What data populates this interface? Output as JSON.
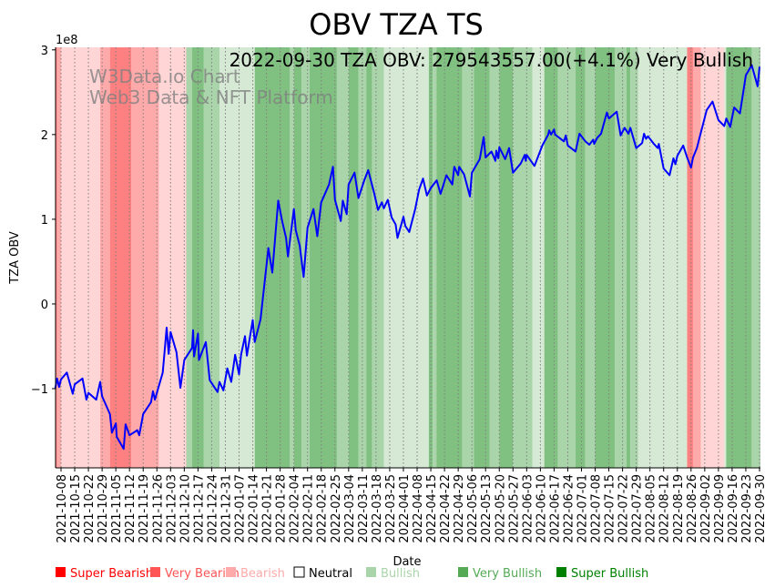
{
  "chart_data": {
    "type": "line",
    "title": "OBV TZA TS",
    "xlabel": "Date",
    "ylabel": "TZA OBV",
    "y_offset_label": "1e8",
    "y_scale": 100000000,
    "ylim": [
      -1.935,
      3.03
    ],
    "x_start_date": "2021-10-08",
    "x_range_days": [
      -3,
      358
    ],
    "grid": "vertical dotted at weekly ticks",
    "annotation": "2022-09-30 TZA OBV: 279543557.00(+4.1%) Very Bullish",
    "watermark": [
      "W3Data.io Chart",
      "Web3 Data & NFT Platform"
    ],
    "y_ticks": [
      {
        "v": -1,
        "label": "−1"
      },
      {
        "v": 0,
        "label": "0"
      },
      {
        "v": 1,
        "label": "1"
      },
      {
        "v": 2,
        "label": "2"
      },
      {
        "v": 3,
        "label": "3"
      }
    ],
    "x_ticks": [
      "2021-10-08",
      "2021-10-15",
      "2021-10-22",
      "2021-10-29",
      "2021-11-05",
      "2021-11-12",
      "2021-11-19",
      "2021-11-26",
      "2021-12-03",
      "2021-12-10",
      "2021-12-17",
      "2021-12-24",
      "2021-12-31",
      "2022-01-07",
      "2022-01-14",
      "2022-01-21",
      "2022-01-28",
      "2022-02-04",
      "2022-02-11",
      "2022-02-18",
      "2022-02-25",
      "2022-03-04",
      "2022-03-11",
      "2022-03-18",
      "2022-03-25",
      "2022-04-01",
      "2022-04-08",
      "2022-04-15",
      "2022-04-22",
      "2022-04-29",
      "2022-05-06",
      "2022-05-13",
      "2022-05-20",
      "2022-05-27",
      "2022-06-03",
      "2022-06-10",
      "2022-06-17",
      "2022-06-24",
      "2022-07-01",
      "2022-07-08",
      "2022-07-15",
      "2022-07-22",
      "2022-07-29",
      "2022-08-05",
      "2022-08-12",
      "2022-08-19",
      "2022-08-26",
      "2022-09-02",
      "2022-09-09",
      "2022-09-16",
      "2022-09-23",
      "2022-09-30"
    ],
    "series": [
      {
        "name": "TZA OBV (1e8)",
        "color": "#0000ff",
        "points": [
          [
            -3,
            -1.0
          ],
          [
            -2,
            -0.88
          ],
          [
            -1,
            -0.98
          ],
          [
            0,
            -0.89
          ],
          [
            3,
            -0.81
          ],
          [
            6,
            -1.06
          ],
          [
            7,
            -0.95
          ],
          [
            11,
            -0.88
          ],
          [
            13,
            -1.13
          ],
          [
            14,
            -1.05
          ],
          [
            18,
            -1.13
          ],
          [
            20,
            -0.92
          ],
          [
            21,
            -1.09
          ],
          [
            25,
            -1.3
          ],
          [
            26,
            -1.52
          ],
          [
            28,
            -1.41
          ],
          [
            28.5,
            -1.57
          ],
          [
            32,
            -1.71
          ],
          [
            33,
            -1.42
          ],
          [
            35,
            -1.55
          ],
          [
            39,
            -1.49
          ],
          [
            40,
            -1.55
          ],
          [
            42,
            -1.3
          ],
          [
            46,
            -1.16
          ],
          [
            47,
            -1.03
          ],
          [
            48,
            -1.13
          ],
          [
            52,
            -0.81
          ],
          [
            54,
            -0.28
          ],
          [
            55,
            -0.59
          ],
          [
            56,
            -0.33
          ],
          [
            59,
            -0.57
          ],
          [
            61,
            -0.99
          ],
          [
            63,
            -0.66
          ],
          [
            67,
            -0.52
          ],
          [
            67.5,
            -0.31
          ],
          [
            68,
            -0.62
          ],
          [
            70,
            -0.35
          ],
          [
            70.5,
            -0.66
          ],
          [
            74,
            -0.45
          ],
          [
            76,
            -0.9
          ],
          [
            80,
            -1.04
          ],
          [
            81,
            -0.92
          ],
          [
            83,
            -1.02
          ],
          [
            85,
            -0.76
          ],
          [
            87,
            -0.92
          ],
          [
            89,
            -0.6
          ],
          [
            91,
            -0.83
          ],
          [
            92,
            -0.6
          ],
          [
            94,
            -0.38
          ],
          [
            95,
            -0.61
          ],
          [
            98,
            -0.19
          ],
          [
            99,
            -0.45
          ],
          [
            102,
            -0.18
          ],
          [
            106,
            0.66
          ],
          [
            108,
            0.37
          ],
          [
            111,
            1.22
          ],
          [
            113,
            0.98
          ],
          [
            115,
            0.78
          ],
          [
            116,
            0.56
          ],
          [
            119,
            1.12
          ],
          [
            120,
            0.87
          ],
          [
            122,
            0.69
          ],
          [
            124,
            0.32
          ],
          [
            126,
            0.9
          ],
          [
            129,
            1.12
          ],
          [
            131,
            0.8
          ],
          [
            133,
            1.2
          ],
          [
            137,
            1.41
          ],
          [
            139,
            1.62
          ],
          [
            140,
            1.23
          ],
          [
            143,
            0.98
          ],
          [
            144,
            1.22
          ],
          [
            146,
            1.06
          ],
          [
            147,
            1.41
          ],
          [
            150,
            1.55
          ],
          [
            152,
            1.25
          ],
          [
            155,
            1.46
          ],
          [
            157,
            1.58
          ],
          [
            160,
            1.31
          ],
          [
            162,
            1.11
          ],
          [
            164,
            1.2
          ],
          [
            165,
            1.13
          ],
          [
            167,
            1.23
          ],
          [
            169,
            1.02
          ],
          [
            171,
            0.94
          ],
          [
            172,
            0.78
          ],
          [
            175,
            1.03
          ],
          [
            176,
            0.92
          ],
          [
            178,
            0.85
          ],
          [
            181,
            1.12
          ],
          [
            183,
            1.35
          ],
          [
            185,
            1.48
          ],
          [
            187,
            1.28
          ],
          [
            189,
            1.37
          ],
          [
            192,
            1.46
          ],
          [
            194,
            1.3
          ],
          [
            197,
            1.52
          ],
          [
            200,
            1.41
          ],
          [
            201,
            1.62
          ],
          [
            203,
            1.52
          ],
          [
            203.5,
            1.62
          ],
          [
            206,
            1.53
          ],
          [
            209,
            1.27
          ],
          [
            210,
            1.55
          ],
          [
            214,
            1.71
          ],
          [
            216,
            1.97
          ],
          [
            217,
            1.73
          ],
          [
            220,
            1.8
          ],
          [
            222,
            1.69
          ],
          [
            222.5,
            1.81
          ],
          [
            223.5,
            1.72
          ],
          [
            224,
            1.85
          ],
          [
            227,
            1.71
          ],
          [
            229,
            1.84
          ],
          [
            231,
            1.55
          ],
          [
            235,
            1.66
          ],
          [
            237,
            1.76
          ],
          [
            237.5,
            1.69
          ],
          [
            238,
            1.76
          ],
          [
            242,
            1.63
          ],
          [
            246,
            1.87
          ],
          [
            249,
            2.0
          ],
          [
            249.5,
            2.05
          ],
          [
            250.5,
            2.0
          ],
          [
            252,
            2.06
          ],
          [
            252.5,
            2.0
          ],
          [
            257,
            1.92
          ],
          [
            258,
            1.99
          ],
          [
            259,
            1.87
          ],
          [
            263,
            1.8
          ],
          [
            265,
            2.01
          ],
          [
            268,
            1.92
          ],
          [
            270,
            1.88
          ],
          [
            272,
            1.94
          ],
          [
            272.5,
            1.89
          ],
          [
            274,
            1.96
          ],
          [
            276,
            2.01
          ],
          [
            279,
            2.26
          ],
          [
            280,
            2.19
          ],
          [
            284,
            2.27
          ],
          [
            286,
            1.99
          ],
          [
            288,
            2.08
          ],
          [
            290,
            2.01
          ],
          [
            291,
            2.08
          ],
          [
            294,
            1.84
          ],
          [
            297,
            1.9
          ],
          [
            298,
            2.01
          ],
          [
            299,
            1.95
          ],
          [
            300,
            1.98
          ],
          [
            303,
            1.89
          ],
          [
            305,
            1.84
          ],
          [
            305.5,
            1.89
          ],
          [
            308,
            1.6
          ],
          [
            311,
            1.52
          ],
          [
            313,
            1.72
          ],
          [
            314,
            1.65
          ],
          [
            315,
            1.75
          ],
          [
            318,
            1.87
          ],
          [
            320,
            1.73
          ],
          [
            322,
            1.61
          ],
          [
            323,
            1.73
          ],
          [
            325,
            1.84
          ],
          [
            327,
            2.02
          ],
          [
            330,
            2.29
          ],
          [
            333,
            2.39
          ],
          [
            336,
            2.17
          ],
          [
            339,
            2.1
          ],
          [
            340,
            2.19
          ],
          [
            342,
            2.09
          ],
          [
            344,
            2.32
          ],
          [
            347,
            2.25
          ],
          [
            350,
            2.7
          ],
          [
            353,
            2.82
          ],
          [
            356,
            2.57
          ],
          [
            357,
            2.8
          ]
        ]
      }
    ],
    "sentiment_colors": {
      "Super Bearish": "#ff8080",
      "Very Bearish": "#ffaaaa",
      "Bearish": "#ffd5d5",
      "Bullish": "#d5e9d4",
      "Very Bullish": "#aad4aa",
      "Super Bullish": "#80c080"
    },
    "sentiment_bands": [
      [
        -3,
        -2,
        "Super Bearish"
      ],
      [
        -2,
        0,
        "Very Bearish"
      ],
      [
        0,
        20,
        "Bearish"
      ],
      [
        20,
        25,
        "Very Bearish"
      ],
      [
        25,
        36,
        "Super Bearish"
      ],
      [
        36,
        50,
        "Very Bearish"
      ],
      [
        50,
        64,
        "Bearish"
      ],
      [
        64,
        67,
        "Very Bullish"
      ],
      [
        67,
        73,
        "Super Bullish"
      ],
      [
        73,
        81,
        "Very Bullish"
      ],
      [
        81,
        99,
        "Bullish"
      ],
      [
        99,
        117,
        "Super Bullish"
      ],
      [
        117,
        119,
        "Very Bullish"
      ],
      [
        119,
        123,
        "Super Bullish"
      ],
      [
        123,
        127,
        "Very Bullish"
      ],
      [
        127,
        141,
        "Super Bullish"
      ],
      [
        141,
        147,
        "Very Bullish"
      ],
      [
        147,
        152,
        "Super Bullish"
      ],
      [
        152,
        156,
        "Very Bullish"
      ],
      [
        156,
        159,
        "Super Bullish"
      ],
      [
        159,
        165,
        "Very Bullish"
      ],
      [
        165,
        188,
        "Bullish"
      ],
      [
        188,
        190,
        "Super Bullish"
      ],
      [
        190,
        192,
        "Very Bullish"
      ],
      [
        192,
        205,
        "Super Bullish"
      ],
      [
        205,
        211,
        "Very Bullish"
      ],
      [
        211,
        219,
        "Super Bullish"
      ],
      [
        219,
        224,
        "Very Bullish"
      ],
      [
        224,
        231,
        "Super Bullish"
      ],
      [
        231,
        241,
        "Very Bullish"
      ],
      [
        241,
        247,
        "Bullish"
      ],
      [
        247,
        254,
        "Super Bullish"
      ],
      [
        254,
        263,
        "Very Bullish"
      ],
      [
        263,
        268,
        "Super Bullish"
      ],
      [
        268,
        273,
        "Very Bullish"
      ],
      [
        273,
        283,
        "Super Bullish"
      ],
      [
        283,
        289,
        "Very Bullish"
      ],
      [
        289,
        291,
        "Super Bullish"
      ],
      [
        291,
        295,
        "Very Bullish"
      ],
      [
        295,
        320,
        "Bullish"
      ],
      [
        320,
        323,
        "Super Bearish"
      ],
      [
        323,
        327,
        "Very Bearish"
      ],
      [
        327,
        339,
        "Bearish"
      ],
      [
        339,
        340,
        "Bullish"
      ],
      [
        340,
        353,
        "Super Bullish"
      ],
      [
        353,
        358,
        "Very Bullish"
      ]
    ],
    "legend": [
      {
        "label": "Super Bearish",
        "color": "#ff0000"
      },
      {
        "label": "Very Bearish",
        "color": "#ff5555"
      },
      {
        "label": "Bearish",
        "color": "#ffaaaa"
      },
      {
        "label": "Neutral",
        "color": "#ffffff"
      },
      {
        "label": "Bullish",
        "color": "#aad4aa"
      },
      {
        "label": "Very Bullish",
        "color": "#55aa55"
      },
      {
        "label": "Super Bullish",
        "color": "#008000"
      }
    ]
  }
}
